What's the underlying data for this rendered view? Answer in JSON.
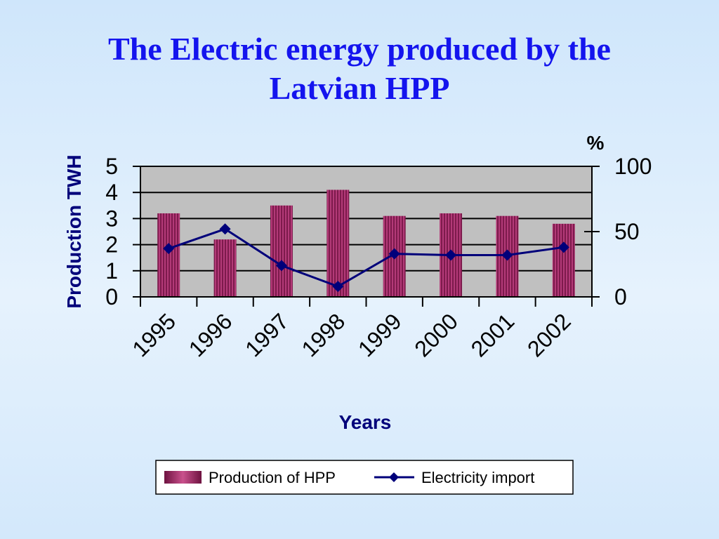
{
  "title": {
    "line1": "The Electric energy produced by the",
    "line2": "Latvian HPP"
  },
  "colors": {
    "title": "#1414ee",
    "bar": "#9b2a63",
    "line": "#00007a",
    "plot_bg": "#c0c0c0"
  },
  "chart_data": {
    "type": "bar",
    "categories": [
      "1995",
      "1996",
      "1997",
      "1998",
      "1999",
      "2000",
      "2001",
      "2002"
    ],
    "series": [
      {
        "name": "Production of HPP",
        "type": "bar",
        "axis": "left",
        "values": [
          3.2,
          2.2,
          3.5,
          4.1,
          3.1,
          3.2,
          3.1,
          2.8
        ]
      },
      {
        "name": "Electricity import",
        "type": "line",
        "axis": "right",
        "values": [
          37,
          52,
          24,
          8,
          33,
          32,
          32,
          38
        ]
      }
    ],
    "ylabel": "Production TWH",
    "y2label": "%",
    "xlabel": "Years",
    "ylim": [
      0,
      5
    ],
    "y2lim": [
      0,
      100
    ],
    "yticks": [
      "0",
      "1",
      "2",
      "3",
      "4",
      "5"
    ],
    "y2ticks": [
      "0",
      "50",
      "100"
    ],
    "grid": true,
    "legend_position": "bottom"
  }
}
